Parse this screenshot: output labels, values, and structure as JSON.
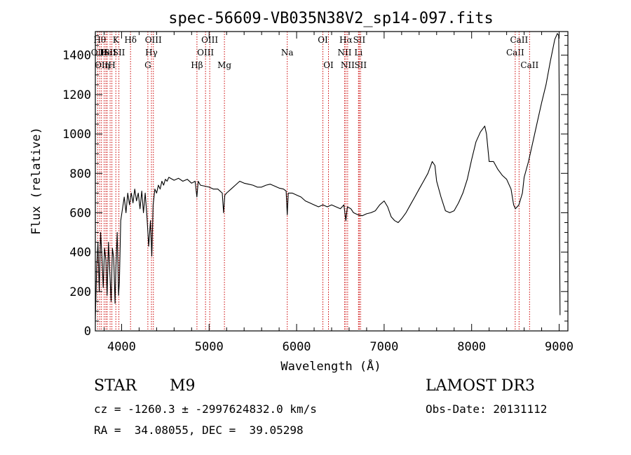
{
  "chart_data": {
    "type": "line",
    "title": "spec-56609-VB035N38V2_sp14-097.fits",
    "xlabel": "Wavelength (Å)",
    "ylabel": "Flux (relative)",
    "xlim": [
      3700,
      9100
    ],
    "ylim": [
      0,
      1520
    ],
    "xticks": [
      4000,
      5000,
      6000,
      7000,
      8000,
      9000
    ],
    "xtick_labels": [
      "4000",
      "5000",
      "6000",
      "7000",
      "8000",
      "9000"
    ],
    "yticks": [
      0,
      200,
      400,
      600,
      800,
      1000,
      1200,
      1400
    ],
    "ytick_labels": [
      "0",
      "200",
      "400",
      "600",
      "800",
      "1000",
      "1200",
      "1400"
    ],
    "series": [
      {
        "name": "spectrum",
        "color": "#000000",
        "points": [
          [
            3700,
            60
          ],
          [
            3715,
            320
          ],
          [
            3730,
            450
          ],
          [
            3745,
            200
          ],
          [
            3760,
            500
          ],
          [
            3775,
            380
          ],
          [
            3790,
            220
          ],
          [
            3805,
            420
          ],
          [
            3820,
            360
          ],
          [
            3835,
            180
          ],
          [
            3850,
            450
          ],
          [
            3865,
            300
          ],
          [
            3880,
            150
          ],
          [
            3895,
            420
          ],
          [
            3910,
            370
          ],
          [
            3925,
            140
          ],
          [
            3935,
            320
          ],
          [
            3950,
            500
          ],
          [
            3965,
            180
          ],
          [
            3975,
            250
          ],
          [
            3990,
            560
          ],
          [
            4010,
            620
          ],
          [
            4030,
            680
          ],
          [
            4050,
            600
          ],
          [
            4070,
            700
          ],
          [
            4090,
            640
          ],
          [
            4110,
            700
          ],
          [
            4130,
            650
          ],
          [
            4150,
            720
          ],
          [
            4170,
            660
          ],
          [
            4190,
            700
          ],
          [
            4210,
            620
          ],
          [
            4230,
            710
          ],
          [
            4250,
            600
          ],
          [
            4270,
            700
          ],
          [
            4290,
            580
          ],
          [
            4310,
            430
          ],
          [
            4330,
            560
          ],
          [
            4345,
            380
          ],
          [
            4360,
            640
          ],
          [
            4380,
            720
          ],
          [
            4400,
            700
          ],
          [
            4420,
            740
          ],
          [
            4440,
            720
          ],
          [
            4460,
            760
          ],
          [
            4480,
            740
          ],
          [
            4500,
            770
          ],
          [
            4520,
            760
          ],
          [
            4540,
            780
          ],
          [
            4600,
            765
          ],
          [
            4650,
            775
          ],
          [
            4700,
            760
          ],
          [
            4750,
            770
          ],
          [
            4800,
            750
          ],
          [
            4840,
            760
          ],
          [
            4860,
            680
          ],
          [
            4875,
            760
          ],
          [
            4900,
            740
          ],
          [
            4950,
            735
          ],
          [
            5000,
            730
          ],
          [
            5050,
            720
          ],
          [
            5100,
            720
          ],
          [
            5150,
            700
          ],
          [
            5165,
            600
          ],
          [
            5180,
            690
          ],
          [
            5200,
            700
          ],
          [
            5250,
            720
          ],
          [
            5300,
            740
          ],
          [
            5350,
            760
          ],
          [
            5400,
            750
          ],
          [
            5450,
            745
          ],
          [
            5500,
            740
          ],
          [
            5550,
            730
          ],
          [
            5600,
            730
          ],
          [
            5650,
            740
          ],
          [
            5700,
            745
          ],
          [
            5750,
            735
          ],
          [
            5800,
            725
          ],
          [
            5850,
            720
          ],
          [
            5880,
            710
          ],
          [
            5893,
            590
          ],
          [
            5905,
            700
          ],
          [
            5950,
            700
          ],
          [
            6000,
            690
          ],
          [
            6050,
            680
          ],
          [
            6100,
            660
          ],
          [
            6150,
            650
          ],
          [
            6200,
            640
          ],
          [
            6250,
            630
          ],
          [
            6300,
            640
          ],
          [
            6350,
            630
          ],
          [
            6400,
            640
          ],
          [
            6450,
            630
          ],
          [
            6500,
            620
          ],
          [
            6540,
            640
          ],
          [
            6563,
            560
          ],
          [
            6580,
            630
          ],
          [
            6620,
            620
          ],
          [
            6650,
            600
          ],
          [
            6700,
            590
          ],
          [
            6750,
            585
          ],
          [
            6800,
            595
          ],
          [
            6850,
            600
          ],
          [
            6900,
            610
          ],
          [
            6950,
            640
          ],
          [
            7000,
            660
          ],
          [
            7040,
            630
          ],
          [
            7080,
            580
          ],
          [
            7120,
            560
          ],
          [
            7160,
            550
          ],
          [
            7200,
            570
          ],
          [
            7250,
            600
          ],
          [
            7300,
            640
          ],
          [
            7350,
            680
          ],
          [
            7400,
            720
          ],
          [
            7450,
            760
          ],
          [
            7500,
            800
          ],
          [
            7550,
            860
          ],
          [
            7580,
            840
          ],
          [
            7600,
            760
          ],
          [
            7650,
            680
          ],
          [
            7700,
            610
          ],
          [
            7750,
            600
          ],
          [
            7800,
            610
          ],
          [
            7850,
            650
          ],
          [
            7900,
            700
          ],
          [
            7950,
            770
          ],
          [
            8000,
            870
          ],
          [
            8050,
            960
          ],
          [
            8100,
            1010
          ],
          [
            8150,
            1040
          ],
          [
            8170,
            1000
          ],
          [
            8200,
            860
          ],
          [
            8250,
            860
          ],
          [
            8300,
            820
          ],
          [
            8350,
            790
          ],
          [
            8400,
            770
          ],
          [
            8450,
            720
          ],
          [
            8480,
            640
          ],
          [
            8500,
            620
          ],
          [
            8540,
            640
          ],
          [
            8580,
            700
          ],
          [
            8600,
            780
          ],
          [
            8650,
            860
          ],
          [
            8700,
            960
          ],
          [
            8750,
            1060
          ],
          [
            8800,
            1160
          ],
          [
            8850,
            1250
          ],
          [
            8900,
            1370
          ],
          [
            8950,
            1480
          ],
          [
            8980,
            1510
          ],
          [
            8995,
            1500
          ],
          [
            9000,
            1250
          ],
          [
            9005,
            500
          ],
          [
            9010,
            80
          ]
        ]
      }
    ],
    "line_annotations": [
      {
        "wavelength": 3727,
        "label": "OII",
        "row": 1
      },
      {
        "wavelength": 3750,
        "label": "Hθ",
        "row": 0
      },
      {
        "wavelength": 3770,
        "label": "OII",
        "row": 2
      },
      {
        "wavelength": 3800,
        "label": "H",
        "row": 1
      },
      {
        "wavelength": 3820,
        "label": "He",
        "row": 1
      },
      {
        "wavelength": 3835,
        "label": "η",
        "row": 2
      },
      {
        "wavelength": 3869,
        "label": "SII",
        "row": 1
      },
      {
        "wavelength": 3889,
        "label": "H",
        "row": 2
      },
      {
        "wavelength": 3934,
        "label": "K",
        "row": 0
      },
      {
        "wavelength": 3969,
        "label": "SII",
        "row": 1
      },
      {
        "wavelength": 4102,
        "label": "Hδ",
        "row": 0
      },
      {
        "wavelength": 4300,
        "label": "G",
        "row": 2
      },
      {
        "wavelength": 4341,
        "label": "Hγ",
        "row": 1
      },
      {
        "wavelength": 4363,
        "label": "OIII",
        "row": 0
      },
      {
        "wavelength": 4861,
        "label": "Hβ",
        "row": 2
      },
      {
        "wavelength": 4959,
        "label": "OIII",
        "row": 1
      },
      {
        "wavelength": 5007,
        "label": "OIII",
        "row": 0
      },
      {
        "wavelength": 5175,
        "label": "Mg",
        "row": 2
      },
      {
        "wavelength": 5893,
        "label": "Na",
        "row": 1
      },
      {
        "wavelength": 6300,
        "label": "OI",
        "row": 0
      },
      {
        "wavelength": 6364,
        "label": "OI",
        "row": 2
      },
      {
        "wavelength": 6548,
        "label": "NII",
        "row": 1
      },
      {
        "wavelength": 6563,
        "label": "Hα",
        "row": 0
      },
      {
        "wavelength": 6583,
        "label": "NII",
        "row": 2
      },
      {
        "wavelength": 6707,
        "label": "Li",
        "row": 1
      },
      {
        "wavelength": 6716,
        "label": "SII",
        "row": 0
      },
      {
        "wavelength": 6731,
        "label": "SII",
        "row": 2
      },
      {
        "wavelength": 8498,
        "label": "CaII",
        "row": 1
      },
      {
        "wavelength": 8542,
        "label": "CaII",
        "row": 0
      },
      {
        "wavelength": 8662,
        "label": "CaII",
        "row": 2
      }
    ],
    "colors": {
      "spectrum": "#000000",
      "annotation_line": "#cc0000",
      "axes": "#000000"
    }
  },
  "info": {
    "class_label": "STAR",
    "subclass": "M9",
    "survey": "LAMOST DR3",
    "cz_line": "cz = -1260.3 ± -2997624832.0 km/s",
    "obs_date": "Obs-Date: 20131112",
    "coords": "RA =  34.08055, DEC =  39.05298"
  }
}
